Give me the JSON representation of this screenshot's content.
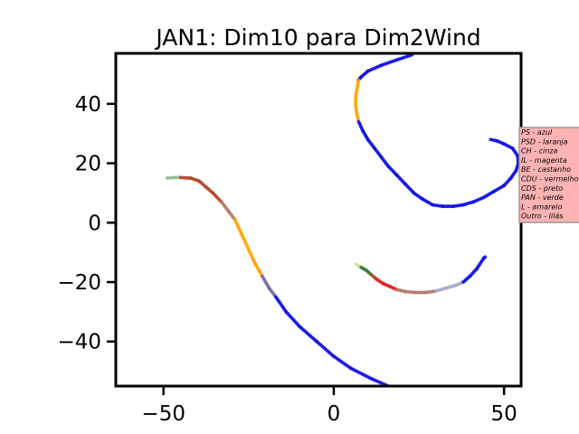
{
  "chart_data": {
    "type": "scatter",
    "title": "JAN1: Dim10 para Dim2Wind",
    "xlabel": "",
    "ylabel": "",
    "xlim": [
      -64,
      55
    ],
    "ylim": [
      -55,
      57
    ],
    "xticks": [
      -50,
      0,
      50
    ],
    "yticks": [
      -40,
      -20,
      0,
      20,
      40
    ],
    "xtick_labels": [
      "−50",
      "0",
      "50"
    ],
    "ytick_labels": [
      "−40",
      "−20",
      "0",
      "20",
      "40"
    ],
    "grid": false,
    "legend_placement": "right, partially clipped",
    "legend_background": "#ffb3b3",
    "legend": [
      {
        "text": "PS - azul",
        "color": "#0000ff"
      },
      {
        "text": "PSD - laranja",
        "color": "#ffa500"
      },
      {
        "text": "CH - cinza",
        "color": "#808080"
      },
      {
        "text": "IL - magenta",
        "color": "#ff00ff"
      },
      {
        "text": "BE - castanho",
        "color": "#a0522d"
      },
      {
        "text": "CDU - vermelho",
        "color": "#ff0000"
      },
      {
        "text": "CDS - preto",
        "color": "#000000"
      },
      {
        "text": "PAN - verde",
        "color": "#008000"
      },
      {
        "text": "L - amarelo",
        "color": "#ffff00"
      },
      {
        "text": "Outro - lilás",
        "color": "#c8a2c8"
      }
    ],
    "series": [
      {
        "segments": [
          {
            "color": "#8fbc8f",
            "points": [
              [
                -49,
                15
              ],
              [
                -47,
                15.2
              ],
              [
                -45,
                15.2
              ]
            ]
          },
          {
            "color": "#b5472a",
            "points": [
              [
                -45,
                15.2
              ],
              [
                -42,
                15
              ],
              [
                -39.5,
                14
              ],
              [
                -37.5,
                12
              ],
              [
                -35.5,
                10
              ],
              [
                -33,
                7
              ]
            ]
          },
          {
            "color": "#b07a6a",
            "points": [
              [
                -33,
                7
              ],
              [
                -31,
                4
              ],
              [
                -29,
                1
              ]
            ]
          },
          {
            "color": "#ffa500",
            "points": [
              [
                -29,
                1
              ],
              [
                -27,
                -4
              ],
              [
                -25,
                -9
              ],
              [
                -23,
                -14
              ],
              [
                -21,
                -18
              ]
            ]
          },
          {
            "color": "#7a6aa0",
            "points": [
              [
                -21,
                -18
              ],
              [
                -19,
                -22
              ],
              [
                -17,
                -25
              ]
            ]
          },
          {
            "color": "#1010e0",
            "points": [
              [
                -17,
                -25
              ],
              [
                -14,
                -30
              ],
              [
                -10,
                -35
              ],
              [
                -5,
                -40
              ],
              [
                0,
                -45
              ],
              [
                5,
                -49
              ],
              [
                11,
                -52.5
              ],
              [
                16,
                -55
              ]
            ]
          }
        ]
      },
      {
        "segments": [
          {
            "color": "#1010e0",
            "points": [
              [
                23,
                56.5
              ],
              [
                19,
                55
              ],
              [
                14,
                53
              ],
              [
                10,
                51
              ],
              [
                8,
                49
              ],
              [
                7.2,
                48
              ]
            ]
          },
          {
            "color": "#ffa500",
            "points": [
              [
                7.2,
                48
              ],
              [
                7,
                46
              ],
              [
                6.5,
                43
              ],
              [
                6.4,
                40
              ],
              [
                6.7,
                37
              ],
              [
                7.3,
                34
              ]
            ]
          },
          {
            "color": "#1010e0",
            "points": [
              [
                7.3,
                34
              ],
              [
                8.5,
                31
              ],
              [
                10,
                28
              ],
              [
                12,
                25
              ],
              [
                14,
                22
              ],
              [
                16,
                19
              ],
              [
                18.5,
                16
              ],
              [
                21,
                13
              ],
              [
                23.5,
                10
              ],
              [
                26,
                8
              ],
              [
                29,
                6
              ],
              [
                32,
                5.5
              ],
              [
                35,
                5.5
              ],
              [
                38,
                6
              ],
              [
                41,
                7
              ],
              [
                44,
                8.5
              ],
              [
                47,
                10.5
              ],
              [
                50,
                12.5
              ],
              [
                52,
                15
              ],
              [
                53.5,
                17.5
              ],
              [
                54.2,
                20
              ],
              [
                54,
                22.5
              ],
              [
                52.5,
                25
              ],
              [
                50,
                26.5
              ],
              [
                48,
                27.5
              ],
              [
                46,
                28
              ]
            ]
          }
        ]
      },
      {
        "segments": [
          {
            "color": "#d4e09a",
            "points": [
              [
                6.5,
                -14
              ],
              [
                8,
                -15
              ]
            ]
          },
          {
            "color": "#2e7d32",
            "points": [
              [
                8,
                -15
              ],
              [
                9.5,
                -16
              ],
              [
                11,
                -17.5
              ]
            ]
          },
          {
            "color": "#a0522d",
            "points": [
              [
                11,
                -17.5
              ],
              [
                12.5,
                -19
              ]
            ]
          },
          {
            "color": "#e02020",
            "points": [
              [
                12.5,
                -19
              ],
              [
                14.5,
                -20.5
              ],
              [
                16.5,
                -21.5
              ],
              [
                18.5,
                -22.5
              ]
            ]
          },
          {
            "color": "#b07a6a",
            "points": [
              [
                18.5,
                -22.5
              ],
              [
                21,
                -23.2
              ],
              [
                24,
                -23.5
              ],
              [
                27,
                -23.5
              ],
              [
                30,
                -23
              ]
            ]
          },
          {
            "color": "#a9a9c9",
            "points": [
              [
                30,
                -23
              ],
              [
                33,
                -22
              ],
              [
                36,
                -21
              ],
              [
                38,
                -20
              ]
            ]
          },
          {
            "color": "#1010e0",
            "points": [
              [
                38,
                -20
              ],
              [
                40,
                -18
              ],
              [
                42,
                -15.5
              ],
              [
                44,
                -12
              ],
              [
                44.5,
                -11.5
              ]
            ]
          }
        ]
      }
    ]
  }
}
